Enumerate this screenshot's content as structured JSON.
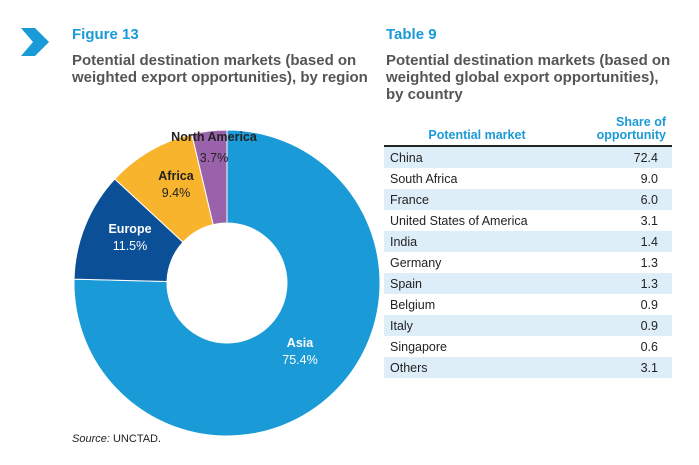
{
  "figure": {
    "label": "Figure 13",
    "title": "Potential destination markets (based on weighted export opportunities), by region",
    "source_prefix": "Source:",
    "source": "UNCTAD."
  },
  "table": {
    "label": "Table 9",
    "title": "Potential destination markets (based on weighted global export opportunities), by country",
    "headers": [
      "Potential market",
      "Share of opportunity"
    ],
    "rows": [
      [
        "China",
        "72.4"
      ],
      [
        "South Africa",
        "9.0"
      ],
      [
        "France",
        "6.0"
      ],
      [
        "United States of America",
        "3.1"
      ],
      [
        "India",
        "1.4"
      ],
      [
        "Germany",
        "1.3"
      ],
      [
        "Spain",
        "1.3"
      ],
      [
        "Belgium",
        "0.9"
      ],
      [
        "Italy",
        "0.9"
      ],
      [
        "Singapore",
        "0.6"
      ],
      [
        "Others",
        "3.1"
      ]
    ]
  },
  "chart_data": {
    "type": "pie",
    "donut": true,
    "slices": [
      {
        "name": "Asia",
        "value": 75.4,
        "label": "75.4%",
        "color": "#1a9ad6"
      },
      {
        "name": "Europe",
        "value": 11.5,
        "label": "11.5%",
        "color": "#0b4f96"
      },
      {
        "name": "Africa",
        "value": 9.4,
        "label": "9.4%",
        "color": "#f7b42c"
      },
      {
        "name": "North America",
        "value": 3.7,
        "label": "3.7%",
        "color": "#9b62ac"
      }
    ]
  }
}
